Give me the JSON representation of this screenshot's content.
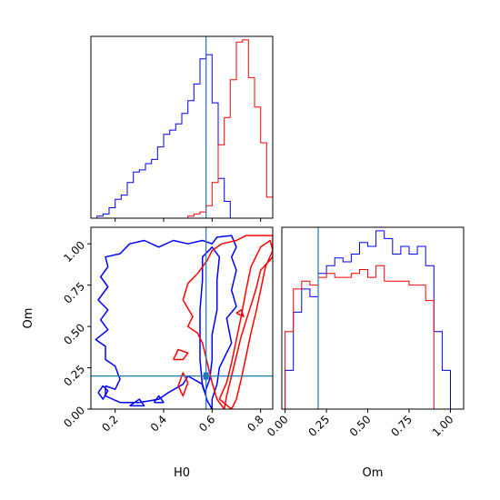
{
  "chart_data": [
    {
      "type": "histogram",
      "panel": "H0 marginal",
      "x_ticks": [
        0.2,
        0.4,
        0.6,
        0.8
      ],
      "xlim": [
        0.1,
        0.85
      ],
      "truth": 0.575,
      "bin_edges": [
        0.1,
        0.125,
        0.15,
        0.175,
        0.2,
        0.225,
        0.25,
        0.275,
        0.3,
        0.325,
        0.35,
        0.375,
        0.4,
        0.425,
        0.45,
        0.475,
        0.5,
        0.525,
        0.55,
        0.575,
        0.6,
        0.625,
        0.65,
        0.675,
        0.7,
        0.725,
        0.75,
        0.775,
        0.8,
        0.825,
        0.85
      ],
      "series": [
        {
          "color": "#0000ff",
          "counts": [
            0,
            1,
            2,
            5,
            9,
            11,
            17,
            22,
            23,
            26,
            28,
            34,
            40,
            42,
            45,
            50,
            56,
            64,
            76,
            78,
            55,
            19,
            8,
            0,
            0,
            0,
            0,
            0,
            0,
            0
          ]
        },
        {
          "color": "#ff0000",
          "counts": [
            0,
            0,
            0,
            0,
            0,
            0,
            0,
            0,
            0,
            0,
            0,
            0,
            0,
            0,
            0,
            0,
            1,
            2,
            3,
            6,
            17,
            35,
            48,
            66,
            84,
            85,
            67,
            53,
            36,
            10
          ]
        }
      ]
    },
    {
      "type": "contour",
      "panel": "H0 vs Om",
      "xlabel": "H0",
      "ylabel": "Om",
      "x_ticks": [
        0.2,
        0.4,
        0.6,
        0.8
      ],
      "y_ticks": [
        0.0,
        0.25,
        0.5,
        0.75,
        1.0
      ],
      "xlim": [
        0.1,
        0.85
      ],
      "ylim": [
        0.0,
        1.1
      ],
      "truth": [
        0.575,
        0.2
      ],
      "series": [
        {
          "color": "#0000ff",
          "contours": [
            [
              [
                0.16,
                0.14
              ],
              [
                0.2,
                0.12
              ],
              [
                0.22,
                0.18
              ],
              [
                0.2,
                0.26
              ],
              [
                0.16,
                0.3
              ],
              [
                0.16,
                0.38
              ],
              [
                0.12,
                0.42
              ],
              [
                0.17,
                0.48
              ],
              [
                0.14,
                0.54
              ],
              [
                0.17,
                0.6
              ],
              [
                0.13,
                0.66
              ],
              [
                0.17,
                0.74
              ],
              [
                0.14,
                0.8
              ],
              [
                0.17,
                0.86
              ],
              [
                0.16,
                0.92
              ],
              [
                0.22,
                0.94
              ],
              [
                0.26,
                1.0
              ],
              [
                0.32,
                1.02
              ],
              [
                0.38,
                0.98
              ],
              [
                0.44,
                1.02
              ],
              [
                0.5,
                1.0
              ],
              [
                0.56,
                1.02
              ],
              [
                0.6,
                1.0
              ],
              [
                0.62,
                1.04
              ],
              [
                0.68,
                1.05
              ],
              [
                0.7,
                0.98
              ],
              [
                0.68,
                0.92
              ],
              [
                0.7,
                0.84
              ],
              [
                0.68,
                0.72
              ],
              [
                0.7,
                0.62
              ],
              [
                0.66,
                0.55
              ],
              [
                0.68,
                0.4
              ],
              [
                0.63,
                0.25
              ],
              [
                0.62,
                0.15
              ],
              [
                0.6,
                0.06
              ],
              [
                0.6,
                0.0
              ],
              [
                0.58,
                0.05
              ],
              [
                0.56,
                0.15
              ],
              [
                0.5,
                0.2
              ],
              [
                0.48,
                0.15
              ],
              [
                0.42,
                0.1
              ],
              [
                0.38,
                0.06
              ],
              [
                0.3,
                0.04
              ],
              [
                0.22,
                0.04
              ],
              [
                0.16,
                0.08
              ],
              [
                0.16,
                0.14
              ]
            ],
            [
              [
                0.56,
                0.14
              ],
              [
                0.55,
                0.3
              ],
              [
                0.55,
                0.45
              ],
              [
                0.55,
                0.6
              ],
              [
                0.56,
                0.78
              ],
              [
                0.56,
                0.92
              ],
              [
                0.6,
                0.98
              ],
              [
                0.63,
                0.92
              ],
              [
                0.62,
                0.78
              ],
              [
                0.62,
                0.6
              ],
              [
                0.6,
                0.45
              ],
              [
                0.6,
                0.3
              ],
              [
                0.59,
                0.18
              ],
              [
                0.57,
                0.1
              ],
              [
                0.56,
                0.14
              ]
            ],
            [
              [
                0.13,
                0.1
              ],
              [
                0.15,
                0.14
              ],
              [
                0.17,
                0.11
              ],
              [
                0.15,
                0.06
              ],
              [
                0.13,
                0.1
              ]
            ],
            [
              [
                0.26,
                0.02
              ],
              [
                0.3,
                0.06
              ],
              [
                0.32,
                0.02
              ],
              [
                0.26,
                0.02
              ]
            ],
            [
              [
                0.36,
                0.04
              ],
              [
                0.38,
                0.08
              ],
              [
                0.4,
                0.04
              ],
              [
                0.36,
                0.04
              ]
            ]
          ]
        },
        {
          "color": "#ff0000",
          "contours": [
            [
              [
                0.48,
                0.66
              ],
              [
                0.5,
                0.76
              ],
              [
                0.54,
                0.82
              ],
              [
                0.56,
                0.86
              ],
              [
                0.58,
                0.9
              ],
              [
                0.6,
                0.96
              ],
              [
                0.64,
                1.0
              ],
              [
                0.7,
                1.02
              ],
              [
                0.74,
                1.05
              ],
              [
                0.8,
                1.05
              ],
              [
                0.85,
                1.05
              ],
              [
                0.85,
                0.92
              ],
              [
                0.8,
                0.84
              ],
              [
                0.78,
                0.72
              ],
              [
                0.75,
                0.58
              ],
              [
                0.72,
                0.44
              ],
              [
                0.7,
                0.32
              ],
              [
                0.68,
                0.2
              ],
              [
                0.66,
                0.08
              ],
              [
                0.65,
                0.0
              ],
              [
                0.62,
                0.06
              ],
              [
                0.6,
                0.16
              ],
              [
                0.58,
                0.28
              ],
              [
                0.56,
                0.4
              ],
              [
                0.54,
                0.46
              ],
              [
                0.5,
                0.5
              ],
              [
                0.52,
                0.56
              ],
              [
                0.48,
                0.66
              ]
            ],
            [
              [
                0.63,
                0.06
              ],
              [
                0.66,
                0.16
              ],
              [
                0.68,
                0.28
              ],
              [
                0.7,
                0.42
              ],
              [
                0.72,
                0.56
              ],
              [
                0.74,
                0.72
              ],
              [
                0.76,
                0.86
              ],
              [
                0.8,
                0.98
              ],
              [
                0.84,
                1.02
              ],
              [
                0.85,
                0.96
              ],
              [
                0.82,
                0.86
              ],
              [
                0.8,
                0.72
              ],
              [
                0.78,
                0.58
              ],
              [
                0.76,
                0.46
              ],
              [
                0.74,
                0.32
              ],
              [
                0.72,
                0.18
              ],
              [
                0.7,
                0.06
              ],
              [
                0.68,
                0.0
              ],
              [
                0.63,
                0.06
              ]
            ],
            [
              [
                0.44,
                0.3
              ],
              [
                0.46,
                0.36
              ],
              [
                0.5,
                0.34
              ],
              [
                0.48,
                0.3
              ],
              [
                0.44,
                0.3
              ]
            ],
            [
              [
                0.46,
                0.14
              ],
              [
                0.48,
                0.22
              ],
              [
                0.5,
                0.16
              ],
              [
                0.48,
                0.08
              ],
              [
                0.46,
                0.14
              ]
            ],
            [
              [
                0.7,
                0.58
              ],
              [
                0.72,
                0.6
              ],
              [
                0.73,
                0.56
              ],
              [
                0.7,
                0.58
              ]
            ]
          ]
        }
      ]
    },
    {
      "type": "histogram",
      "panel": "Om marginal",
      "xlabel": "Om",
      "x_ticks": [
        0.0,
        0.25,
        0.5,
        0.75,
        1.0
      ],
      "xlim": [
        -0.02,
        1.08
      ],
      "truth": 0.2,
      "bin_edges": [
        0.0,
        0.05,
        0.1,
        0.15,
        0.2,
        0.25,
        0.3,
        0.35,
        0.4,
        0.45,
        0.5,
        0.55,
        0.6,
        0.65,
        0.7,
        0.75,
        0.8,
        0.85,
        0.9,
        0.95,
        1.0,
        1.05
      ],
      "series": [
        {
          "color": "#0000ff",
          "counts": [
            20,
            50,
            62,
            58,
            70,
            74,
            78,
            76,
            80,
            86,
            84,
            92,
            88,
            80,
            84,
            80,
            84,
            74,
            40,
            20,
            0
          ]
        },
        {
          "color": "#ff0000",
          "counts": [
            40,
            62,
            66,
            64,
            68,
            70,
            68,
            68,
            70,
            72,
            68,
            74,
            66,
            66,
            66,
            64,
            64,
            56,
            0,
            0,
            0
          ]
        }
      ]
    }
  ]
}
